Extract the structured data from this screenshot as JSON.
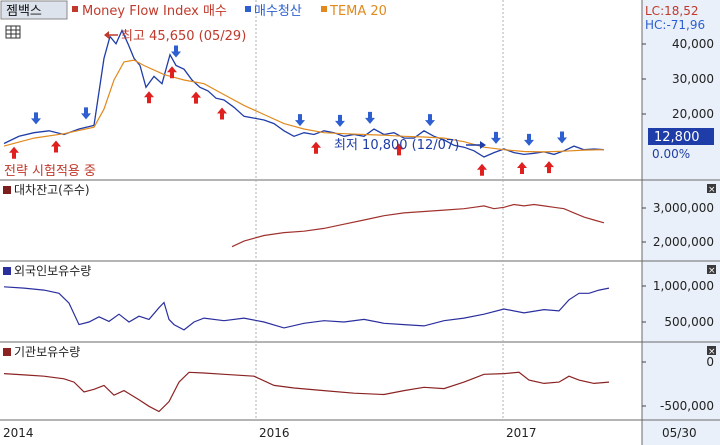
{
  "header": {
    "title": "젬백스",
    "legend": [
      {
        "label": "Money Flow Index 매수",
        "color": "#c0392b"
      },
      {
        "label": "매수청산",
        "color": "#2e5fd1"
      },
      {
        "label": "TEMA 20",
        "color": "#e08a1e"
      }
    ],
    "lc": "LC:18,52",
    "hc": "HC:-71,96"
  },
  "annotations": {
    "high": "최고 45,650 (05/29)",
    "low": "최저 10,800 (12/07)",
    "strategy": "전략 시험적용 중",
    "price_box": "12,800",
    "pct": "0.00%"
  },
  "x_axis": {
    "ticks": [
      "2014",
      "2016",
      "2017",
      "05/30"
    ]
  },
  "chart_data": [
    {
      "type": "line",
      "title": "젬백스",
      "y_ticks": [
        "40,000",
        "30,000",
        "20,000"
      ],
      "ylim": [
        5000,
        48000
      ],
      "series": [
        {
          "name": "젬백스",
          "color": "#1f3da8",
          "points": [
            [
              0,
              14500
            ],
            [
              15,
              16500
            ],
            [
              30,
              17500
            ],
            [
              45,
              18000
            ],
            [
              60,
              17000
            ],
            [
              75,
              18500
            ],
            [
              90,
              19500
            ],
            [
              100,
              38000
            ],
            [
              106,
              44000
            ],
            [
              112,
              42000
            ],
            [
              118,
              45650
            ],
            [
              124,
              42000
            ],
            [
              130,
              38000
            ],
            [
              136,
              36000
            ],
            [
              142,
              30000
            ],
            [
              150,
              33000
            ],
            [
              158,
              31000
            ],
            [
              166,
              39000
            ],
            [
              172,
              36000
            ],
            [
              180,
              35000
            ],
            [
              188,
              32000
            ],
            [
              196,
              30000
            ],
            [
              204,
              29000
            ],
            [
              212,
              27000
            ],
            [
              220,
              26500
            ],
            [
              230,
              24500
            ],
            [
              240,
              22000
            ],
            [
              250,
              21500
            ],
            [
              260,
              21000
            ],
            [
              270,
              20000
            ],
            [
              280,
              18000
            ],
            [
              290,
              16500
            ],
            [
              300,
              17500
            ],
            [
              310,
              17000
            ],
            [
              320,
              18000
            ],
            [
              330,
              17500
            ],
            [
              340,
              16500
            ],
            [
              350,
              17000
            ],
            [
              360,
              16500
            ],
            [
              370,
              18500
            ],
            [
              380,
              17000
            ],
            [
              390,
              17500
            ],
            [
              400,
              16000
            ],
            [
              410,
              16000
            ],
            [
              420,
              18000
            ],
            [
              430,
              16500
            ],
            [
              440,
              15500
            ],
            [
              450,
              14000
            ],
            [
              460,
              13500
            ],
            [
              470,
              12500
            ],
            [
              480,
              10800
            ],
            [
              490,
              12000
            ],
            [
              500,
              13000
            ],
            [
              510,
              12000
            ],
            [
              520,
              11500
            ],
            [
              530,
              11800
            ],
            [
              540,
              12200
            ],
            [
              550,
              11500
            ],
            [
              560,
              12500
            ],
            [
              570,
              13800
            ],
            [
              580,
              12800
            ],
            [
              590,
              13000
            ],
            [
              600,
              12800
            ]
          ]
        },
        {
          "name": "TEMA 20",
          "color": "#e08a1e",
          "points": [
            [
              0,
              13800
            ],
            [
              30,
              16000
            ],
            [
              60,
              17200
            ],
            [
              90,
              19000
            ],
            [
              100,
              24000
            ],
            [
              110,
              32000
            ],
            [
              120,
              37000
            ],
            [
              130,
              37500
            ],
            [
              140,
              36000
            ],
            [
              160,
              33500
            ],
            [
              180,
              32000
            ],
            [
              200,
              31000
            ],
            [
              220,
              28000
            ],
            [
              240,
              25000
            ],
            [
              260,
              22500
            ],
            [
              280,
              20000
            ],
            [
              300,
              18500
            ],
            [
              320,
              17500
            ],
            [
              340,
              17200
            ],
            [
              360,
              17000
            ],
            [
              380,
              16800
            ],
            [
              400,
              16500
            ],
            [
              420,
              16300
            ],
            [
              440,
              16000
            ],
            [
              460,
              15000
            ],
            [
              480,
              13500
            ],
            [
              500,
              12800
            ],
            [
              520,
              12300
            ],
            [
              540,
              12200
            ],
            [
              560,
              12400
            ],
            [
              580,
              12700
            ],
            [
              600,
              12800
            ]
          ]
        }
      ],
      "buy_signals_x": [
        10,
        52,
        145,
        168,
        192,
        218,
        312,
        395,
        478,
        518,
        545
      ],
      "sell_signals_x": [
        32,
        82,
        172,
        296,
        336,
        366,
        426,
        492,
        525,
        558
      ]
    },
    {
      "type": "line",
      "title": "대차잔고(주수)",
      "y_ticks": [
        "3,000,000",
        "2,000,000"
      ],
      "ylim": [
        1500000,
        3700000
      ],
      "series": [
        {
          "name": "대차잔고(주수)",
          "color": "#a0322e",
          "points": [
            [
              228,
              1900000
            ],
            [
              240,
              2100000
            ],
            [
              260,
              2300000
            ],
            [
              280,
              2400000
            ],
            [
              300,
              2450000
            ],
            [
              320,
              2550000
            ],
            [
              340,
              2700000
            ],
            [
              360,
              2850000
            ],
            [
              380,
              3000000
            ],
            [
              400,
              3100000
            ],
            [
              420,
              3150000
            ],
            [
              440,
              3200000
            ],
            [
              460,
              3250000
            ],
            [
              470,
              3300000
            ],
            [
              480,
              3350000
            ],
            [
              490,
              3250000
            ],
            [
              500,
              3300000
            ],
            [
              510,
              3400000
            ],
            [
              520,
              3350000
            ],
            [
              530,
              3400000
            ],
            [
              540,
              3350000
            ],
            [
              550,
              3300000
            ],
            [
              560,
              3250000
            ],
            [
              570,
              3100000
            ],
            [
              580,
              2950000
            ],
            [
              590,
              2850000
            ],
            [
              600,
              2750000
            ]
          ]
        }
      ]
    },
    {
      "type": "line",
      "title": "외국인보유수량",
      "y_ticks": [
        "1,000,000",
        "500,000"
      ],
      "ylim": [
        300000,
        1250000
      ],
      "series": [
        {
          "name": "외국인보유수량",
          "color": "#2b2f9e",
          "points": [
            [
              0,
              1100000
            ],
            [
              20,
              1080000
            ],
            [
              40,
              1050000
            ],
            [
              55,
              1000000
            ],
            [
              65,
              850000
            ],
            [
              75,
              520000
            ],
            [
              85,
              560000
            ],
            [
              95,
              640000
            ],
            [
              105,
              570000
            ],
            [
              115,
              680000
            ],
            [
              125,
              560000
            ],
            [
              135,
              650000
            ],
            [
              145,
              600000
            ],
            [
              155,
              780000
            ],
            [
              160,
              860000
            ],
            [
              165,
              600000
            ],
            [
              170,
              520000
            ],
            [
              180,
              440000
            ],
            [
              190,
              560000
            ],
            [
              200,
              620000
            ],
            [
              220,
              580000
            ],
            [
              240,
              620000
            ],
            [
              260,
              560000
            ],
            [
              280,
              470000
            ],
            [
              300,
              540000
            ],
            [
              320,
              580000
            ],
            [
              340,
              560000
            ],
            [
              360,
              600000
            ],
            [
              380,
              540000
            ],
            [
              400,
              520000
            ],
            [
              420,
              500000
            ],
            [
              440,
              580000
            ],
            [
              460,
              620000
            ],
            [
              480,
              680000
            ],
            [
              500,
              760000
            ],
            [
              520,
              700000
            ],
            [
              540,
              750000
            ],
            [
              555,
              730000
            ],
            [
              565,
              900000
            ],
            [
              575,
              1000000
            ],
            [
              585,
              1000000
            ],
            [
              595,
              1050000
            ],
            [
              605,
              1080000
            ]
          ]
        }
      ]
    },
    {
      "type": "line",
      "title": "기관보유수량",
      "y_ticks": [
        "0",
        "-500,000"
      ],
      "ylim": [
        -700000,
        250000
      ],
      "series": [
        {
          "name": "기관보유수량",
          "color": "#8b2323",
          "points": [
            [
              0,
              -20000
            ],
            [
              20,
              -40000
            ],
            [
              40,
              -60000
            ],
            [
              60,
              -100000
            ],
            [
              70,
              -150000
            ],
            [
              80,
              -300000
            ],
            [
              90,
              -260000
            ],
            [
              100,
              -200000
            ],
            [
              110,
              -350000
            ],
            [
              120,
              -280000
            ],
            [
              135,
              -420000
            ],
            [
              145,
              -520000
            ],
            [
              155,
              -600000
            ],
            [
              165,
              -450000
            ],
            [
              175,
              -150000
            ],
            [
              185,
              0
            ],
            [
              200,
              -10000
            ],
            [
              220,
              -30000
            ],
            [
              250,
              -60000
            ],
            [
              270,
              -200000
            ],
            [
              290,
              -240000
            ],
            [
              320,
              -280000
            ],
            [
              350,
              -320000
            ],
            [
              380,
              -340000
            ],
            [
              400,
              -280000
            ],
            [
              420,
              -230000
            ],
            [
              440,
              -250000
            ],
            [
              460,
              -150000
            ],
            [
              480,
              -30000
            ],
            [
              500,
              -20000
            ],
            [
              515,
              0
            ],
            [
              525,
              -120000
            ],
            [
              540,
              -170000
            ],
            [
              555,
              -150000
            ],
            [
              565,
              -60000
            ],
            [
              575,
              -120000
            ],
            [
              590,
              -170000
            ],
            [
              605,
              -150000
            ]
          ]
        }
      ]
    }
  ]
}
